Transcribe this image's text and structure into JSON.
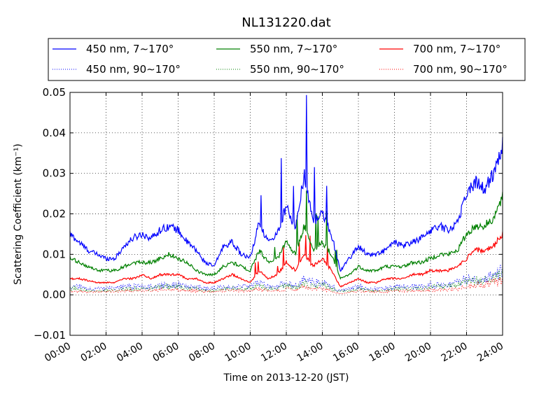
{
  "chart_data": {
    "type": "line",
    "title": "NL131220.dat",
    "xlabel": "Time on 2013-12-20 (JST)",
    "ylabel": "Scattering Coefficient (km⁻¹)",
    "xlim": [
      0,
      24
    ],
    "ylim": [
      -0.01,
      0.05
    ],
    "grid": true,
    "legend_position": "top (above plot, 3 columns)",
    "x_ticks": [
      "00:00",
      "02:00",
      "04:00",
      "06:00",
      "08:00",
      "10:00",
      "12:00",
      "14:00",
      "16:00",
      "18:00",
      "20:00",
      "22:00",
      "24:00"
    ],
    "y_ticks": [
      "−0.01",
      "0.00",
      "0.01",
      "0.02",
      "0.03",
      "0.04",
      "0.05"
    ],
    "x_hours": [
      0,
      0.5,
      1,
      1.5,
      2,
      2.5,
      3,
      3.5,
      4,
      4.5,
      5,
      5.5,
      6,
      6.5,
      7,
      7.5,
      8,
      8.5,
      9,
      9.5,
      10,
      10.5,
      11,
      11.5,
      12,
      12.5,
      13,
      13.5,
      14,
      14.5,
      15,
      15.5,
      16,
      16.5,
      17,
      17.5,
      18,
      18.5,
      19,
      19.5,
      20,
      20.5,
      21,
      21.5,
      22,
      22.5,
      23,
      23.5,
      24
    ],
    "series": [
      {
        "name": "450 nm, 7∼170°",
        "color": "#0000ff",
        "style": "solid",
        "values": [
          0.015,
          0.013,
          0.011,
          0.01,
          0.009,
          0.009,
          0.012,
          0.014,
          0.015,
          0.014,
          0.016,
          0.017,
          0.016,
          0.013,
          0.011,
          0.008,
          0.007,
          0.012,
          0.013,
          0.01,
          0.009,
          0.018,
          0.013,
          0.015,
          0.022,
          0.016,
          0.03,
          0.018,
          0.02,
          0.015,
          0.006,
          0.009,
          0.012,
          0.01,
          0.01,
          0.011,
          0.013,
          0.012,
          0.013,
          0.014,
          0.016,
          0.017,
          0.016,
          0.018,
          0.025,
          0.028,
          0.026,
          0.03,
          0.037
        ]
      },
      {
        "name": "450 nm, 90∼170°",
        "color": "#0000ff",
        "style": "dotted",
        "values": [
          0.002,
          0.002,
          0.0015,
          0.0015,
          0.0015,
          0.0015,
          0.002,
          0.002,
          0.002,
          0.002,
          0.0025,
          0.0025,
          0.0025,
          0.002,
          0.002,
          0.0015,
          0.0015,
          0.002,
          0.002,
          0.002,
          0.002,
          0.003,
          0.002,
          0.002,
          0.003,
          0.002,
          0.004,
          0.003,
          0.003,
          0.002,
          0.001,
          0.0015,
          0.002,
          0.0015,
          0.0015,
          0.0015,
          0.002,
          0.002,
          0.002,
          0.002,
          0.0025,
          0.0025,
          0.0025,
          0.003,
          0.004,
          0.004,
          0.004,
          0.005,
          0.006
        ]
      },
      {
        "name": "550 nm, 7∼170°",
        "color": "#008000",
        "style": "solid",
        "values": [
          0.009,
          0.008,
          0.007,
          0.006,
          0.006,
          0.006,
          0.007,
          0.008,
          0.008,
          0.008,
          0.009,
          0.01,
          0.009,
          0.008,
          0.006,
          0.005,
          0.005,
          0.007,
          0.008,
          0.007,
          0.006,
          0.011,
          0.008,
          0.009,
          0.013,
          0.01,
          0.017,
          0.011,
          0.013,
          0.01,
          0.004,
          0.005,
          0.007,
          0.006,
          0.006,
          0.007,
          0.007,
          0.007,
          0.008,
          0.008,
          0.009,
          0.01,
          0.01,
          0.011,
          0.015,
          0.017,
          0.017,
          0.019,
          0.024
        ]
      },
      {
        "name": "550 nm, 90∼170°",
        "color": "#008000",
        "style": "dotted",
        "values": [
          0.0015,
          0.0015,
          0.001,
          0.001,
          0.001,
          0.001,
          0.0015,
          0.0015,
          0.0015,
          0.0015,
          0.002,
          0.002,
          0.002,
          0.0015,
          0.0015,
          0.001,
          0.001,
          0.0015,
          0.0015,
          0.0015,
          0.0015,
          0.0025,
          0.0015,
          0.0015,
          0.0025,
          0.0015,
          0.003,
          0.002,
          0.0025,
          0.0015,
          0.0008,
          0.001,
          0.0015,
          0.001,
          0.001,
          0.001,
          0.0015,
          0.0015,
          0.0015,
          0.0015,
          0.002,
          0.002,
          0.002,
          0.0025,
          0.003,
          0.0035,
          0.0035,
          0.004,
          0.005
        ]
      },
      {
        "name": "700 nm, 7∼170°",
        "color": "#ff0000",
        "style": "solid",
        "values": [
          0.004,
          0.004,
          0.0035,
          0.003,
          0.003,
          0.003,
          0.004,
          0.004,
          0.005,
          0.004,
          0.005,
          0.005,
          0.005,
          0.004,
          0.004,
          0.003,
          0.003,
          0.004,
          0.005,
          0.004,
          0.003,
          0.006,
          0.004,
          0.005,
          0.008,
          0.006,
          0.01,
          0.007,
          0.009,
          0.006,
          0.002,
          0.003,
          0.004,
          0.003,
          0.003,
          0.004,
          0.004,
          0.004,
          0.005,
          0.005,
          0.006,
          0.006,
          0.006,
          0.007,
          0.009,
          0.011,
          0.011,
          0.012,
          0.015
        ]
      },
      {
        "name": "700 nm, 90∼170°",
        "color": "#ff0000",
        "style": "dotted",
        "values": [
          0.001,
          0.001,
          0.0008,
          0.0008,
          0.0008,
          0.0008,
          0.001,
          0.001,
          0.001,
          0.001,
          0.0012,
          0.0012,
          0.0012,
          0.001,
          0.001,
          0.0008,
          0.0008,
          0.001,
          0.001,
          0.001,
          0.001,
          0.0015,
          0.001,
          0.001,
          0.0015,
          0.001,
          0.002,
          0.0015,
          0.0015,
          0.001,
          0.0003,
          0.0006,
          0.001,
          0.0008,
          0.0008,
          0.0008,
          0.001,
          0.001,
          0.001,
          0.001,
          0.0012,
          0.0012,
          0.0012,
          0.0015,
          0.002,
          0.0025,
          0.0025,
          0.003,
          0.0035
        ]
      }
    ]
  }
}
